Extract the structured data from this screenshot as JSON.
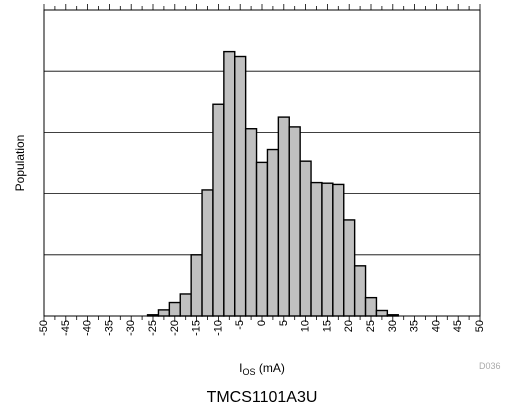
{
  "chart_data": {
    "type": "bar",
    "title": "",
    "caption": "TMCS1101A3U",
    "figure_id": "D036",
    "xlabel_main": "I",
    "xlabel_sub": "OS",
    "xlabel_unit": " (mA)",
    "ylabel": "Population",
    "xlim": [
      -50,
      50
    ],
    "ylim": [
      0,
      5
    ],
    "grid": "horizontal",
    "bar_color": "#c0c0c0",
    "bin_width": 2.5,
    "bins": [
      {
        "x": -25,
        "value": 0.02
      },
      {
        "x": -22.5,
        "value": 0.1
      },
      {
        "x": -20,
        "value": 0.22
      },
      {
        "x": -17.5,
        "value": 0.36
      },
      {
        "x": -15,
        "value": 1.0
      },
      {
        "x": -12.5,
        "value": 2.06
      },
      {
        "x": -10,
        "value": 3.46
      },
      {
        "x": -7.5,
        "value": 4.32
      },
      {
        "x": -5,
        "value": 4.24
      },
      {
        "x": -2.5,
        "value": 3.06
      },
      {
        "x": 0,
        "value": 2.51
      },
      {
        "x": 2.5,
        "value": 2.72
      },
      {
        "x": 5,
        "value": 3.25
      },
      {
        "x": 7.5,
        "value": 3.09
      },
      {
        "x": 10,
        "value": 2.53
      },
      {
        "x": 12.5,
        "value": 2.18
      },
      {
        "x": 15,
        "value": 2.17
      },
      {
        "x": 17.5,
        "value": 2.15
      },
      {
        "x": 20,
        "value": 1.57
      },
      {
        "x": 22.5,
        "value": 0.82
      },
      {
        "x": 25,
        "value": 0.3
      },
      {
        "x": 27.5,
        "value": 0.09
      },
      {
        "x": 30,
        "value": 0.02
      }
    ],
    "x_tick_labels": [
      -50,
      -45,
      -40,
      -35,
      -30,
      -25,
      -20,
      -15,
      -10,
      -5,
      0,
      5,
      10,
      15,
      20,
      25,
      30,
      35,
      40,
      45,
      50
    ]
  }
}
